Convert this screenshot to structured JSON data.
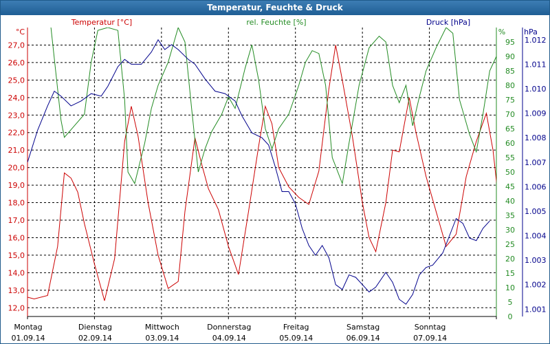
{
  "window": {
    "title": "Temperatur, Feuchte & Druck"
  },
  "chart_data": {
    "type": "line",
    "title": "Temperatur, Feuchte & Druck",
    "grid": true,
    "x_categories": [
      {
        "day": "Montag",
        "date": "01.09.14"
      },
      {
        "day": "Dienstag",
        "date": "02.09.14"
      },
      {
        "day": "Mittwoch",
        "date": "03.09.14"
      },
      {
        "day": "Donnerstag",
        "date": "04.09.14"
      },
      {
        "day": "Freitag",
        "date": "05.09.14"
      },
      {
        "day": "Samstag",
        "date": "06.09.14"
      },
      {
        "day": "Sonntag",
        "date": "07.09.14"
      }
    ],
    "axes": {
      "temperature": {
        "label": "Temperatur [°C]",
        "unit": "°C",
        "range": [
          11.5,
          28.0
        ],
        "ticks": [
          "12,0",
          "13,0",
          "14,0",
          "15,0",
          "16,0",
          "17,0",
          "18,0",
          "19,0",
          "20,0",
          "21,0",
          "22,0",
          "23,0",
          "24,0",
          "25,0",
          "26,0",
          "27,0"
        ],
        "color": "#cc0000"
      },
      "humidity": {
        "label": "rel. Feuchte [%]",
        "unit": "%",
        "range": [
          0,
          100
        ],
        "ticks": [
          "0",
          "5",
          "10",
          "15",
          "20",
          "25",
          "30",
          "35",
          "40",
          "45",
          "50",
          "55",
          "60",
          "65",
          "70",
          "75",
          "80",
          "85",
          "90",
          "95"
        ],
        "color": "#228b22"
      },
      "pressure": {
        "label": "Druck [hPa]",
        "unit": "hPa",
        "range": [
          1000.7,
          1012.5
        ],
        "ticks": [
          "1.001",
          "1.002",
          "1.003",
          "1.004",
          "1.005",
          "1.006",
          "1.007",
          "1.008",
          "1.009",
          "1.010",
          "1.011",
          "1.012"
        ],
        "color": "#00008b"
      }
    },
    "series": [
      {
        "name": "Temperatur [°C]",
        "axis": "temperature",
        "color": "#cc0000",
        "points": [
          [
            0,
            12.6
          ],
          [
            0.1,
            12.5
          ],
          [
            0.3,
            12.7
          ],
          [
            0.45,
            15.5
          ],
          [
            0.55,
            19.7
          ],
          [
            0.65,
            19.4
          ],
          [
            0.75,
            18.6
          ],
          [
            0.85,
            16.8
          ],
          [
            1.0,
            14.5
          ],
          [
            1.15,
            12.4
          ],
          [
            1.3,
            14.8
          ],
          [
            1.45,
            21.5
          ],
          [
            1.55,
            23.5
          ],
          [
            1.65,
            21.8
          ],
          [
            1.8,
            18.0
          ],
          [
            1.95,
            15.0
          ],
          [
            2.1,
            13.1
          ],
          [
            2.25,
            13.5
          ],
          [
            2.35,
            17.5
          ],
          [
            2.5,
            21.7
          ],
          [
            2.6,
            20.2
          ],
          [
            2.7,
            18.8
          ],
          [
            2.85,
            17.6
          ],
          [
            3.0,
            15.5
          ],
          [
            3.15,
            13.9
          ],
          [
            3.3,
            17.5
          ],
          [
            3.45,
            21.2
          ],
          [
            3.55,
            23.5
          ],
          [
            3.65,
            22.5
          ],
          [
            3.75,
            20.0
          ],
          [
            3.9,
            18.9
          ],
          [
            4.05,
            18.3
          ],
          [
            4.2,
            17.9
          ],
          [
            4.35,
            19.8
          ],
          [
            4.5,
            24.5
          ],
          [
            4.6,
            27.0
          ],
          [
            4.7,
            25.0
          ],
          [
            4.85,
            21.8
          ],
          [
            5.0,
            18.0
          ],
          [
            5.1,
            16.0
          ],
          [
            5.2,
            15.2
          ],
          [
            5.35,
            18.0
          ],
          [
            5.45,
            21.0
          ],
          [
            5.55,
            20.9
          ],
          [
            5.7,
            24.0
          ],
          [
            5.8,
            22.0
          ],
          [
            5.95,
            19.5
          ],
          [
            6.1,
            17.5
          ],
          [
            6.25,
            15.5
          ],
          [
            6.4,
            16.2
          ],
          [
            6.55,
            19.5
          ],
          [
            6.7,
            21.5
          ],
          [
            6.85,
            23.1
          ],
          [
            6.95,
            21.0
          ],
          [
            7.05,
            17.5
          ],
          [
            7.15,
            15.8
          ]
        ]
      },
      {
        "name": "rel. Feuchte [%]",
        "axis": "humidity",
        "color": "#228b22",
        "points": [
          [
            0.35,
            100
          ],
          [
            0.5,
            68
          ],
          [
            0.55,
            62
          ],
          [
            0.7,
            66
          ],
          [
            0.85,
            70
          ],
          [
            0.95,
            88
          ],
          [
            1.05,
            99
          ],
          [
            1.2,
            100
          ],
          [
            1.35,
            99
          ],
          [
            1.45,
            75
          ],
          [
            1.5,
            50
          ],
          [
            1.6,
            46
          ],
          [
            1.75,
            60
          ],
          [
            1.85,
            72
          ],
          [
            1.95,
            80
          ],
          [
            2.1,
            88
          ],
          [
            2.25,
            100
          ],
          [
            2.35,
            95
          ],
          [
            2.45,
            72
          ],
          [
            2.55,
            50
          ],
          [
            2.65,
            58
          ],
          [
            2.75,
            64
          ],
          [
            2.9,
            70
          ],
          [
            3.0,
            76
          ],
          [
            3.1,
            72
          ],
          [
            3.25,
            86
          ],
          [
            3.35,
            94
          ],
          [
            3.45,
            82
          ],
          [
            3.55,
            65
          ],
          [
            3.65,
            58
          ],
          [
            3.75,
            65
          ],
          [
            3.9,
            70
          ],
          [
            4.05,
            80
          ],
          [
            4.15,
            88
          ],
          [
            4.25,
            92
          ],
          [
            4.35,
            91
          ],
          [
            4.45,
            80
          ],
          [
            4.55,
            55
          ],
          [
            4.7,
            46
          ],
          [
            4.8,
            60
          ],
          [
            4.95,
            80
          ],
          [
            5.1,
            93
          ],
          [
            5.25,
            97
          ],
          [
            5.35,
            95
          ],
          [
            5.45,
            80
          ],
          [
            5.55,
            74
          ],
          [
            5.65,
            80
          ],
          [
            5.75,
            66
          ],
          [
            5.85,
            76
          ],
          [
            5.95,
            85
          ],
          [
            6.1,
            93
          ],
          [
            6.25,
            100
          ],
          [
            6.35,
            98
          ],
          [
            6.45,
            75
          ],
          [
            6.6,
            63
          ],
          [
            6.7,
            57
          ],
          [
            6.8,
            70
          ],
          [
            6.9,
            85
          ],
          [
            7.0,
            90
          ],
          [
            7.15,
            92
          ]
        ]
      },
      {
        "name": "Druck [hPa]",
        "axis": "pressure",
        "color": "#00008b",
        "points": [
          [
            0,
            1007.0
          ],
          [
            0.15,
            1008.3
          ],
          [
            0.3,
            1009.3
          ],
          [
            0.4,
            1009.9
          ],
          [
            0.5,
            1009.7
          ],
          [
            0.65,
            1009.3
          ],
          [
            0.8,
            1009.5
          ],
          [
            0.95,
            1009.8
          ],
          [
            1.1,
            1009.7
          ],
          [
            1.2,
            1010.1
          ],
          [
            1.35,
            1010.9
          ],
          [
            1.45,
            1011.2
          ],
          [
            1.55,
            1011.0
          ],
          [
            1.7,
            1011.0
          ],
          [
            1.85,
            1011.5
          ],
          [
            1.95,
            1012.0
          ],
          [
            2.05,
            1011.6
          ],
          [
            2.15,
            1011.8
          ],
          [
            2.25,
            1011.6
          ],
          [
            2.4,
            1011.2
          ],
          [
            2.5,
            1011.0
          ],
          [
            2.65,
            1010.4
          ],
          [
            2.8,
            1009.9
          ],
          [
            2.95,
            1009.8
          ],
          [
            3.1,
            1009.5
          ],
          [
            3.2,
            1008.9
          ],
          [
            3.35,
            1008.2
          ],
          [
            3.5,
            1008.0
          ],
          [
            3.6,
            1007.7
          ],
          [
            3.7,
            1006.8
          ],
          [
            3.8,
            1005.8
          ],
          [
            3.9,
            1005.8
          ],
          [
            4.0,
            1005.3
          ],
          [
            4.1,
            1004.3
          ],
          [
            4.2,
            1003.6
          ],
          [
            4.3,
            1003.2
          ],
          [
            4.4,
            1003.6
          ],
          [
            4.5,
            1003.1
          ],
          [
            4.6,
            1002.0
          ],
          [
            4.7,
            1001.8
          ],
          [
            4.8,
            1002.4
          ],
          [
            4.9,
            1002.3
          ],
          [
            5.0,
            1002.0
          ],
          [
            5.1,
            1001.7
          ],
          [
            5.2,
            1001.9
          ],
          [
            5.35,
            1002.5
          ],
          [
            5.45,
            1002.1
          ],
          [
            5.55,
            1001.4
          ],
          [
            5.65,
            1001.2
          ],
          [
            5.75,
            1001.6
          ],
          [
            5.85,
            1002.4
          ],
          [
            5.95,
            1002.7
          ],
          [
            6.05,
            1002.8
          ],
          [
            6.2,
            1003.3
          ],
          [
            6.3,
            1004.0
          ],
          [
            6.4,
            1004.7
          ],
          [
            6.5,
            1004.5
          ],
          [
            6.6,
            1003.9
          ],
          [
            6.7,
            1003.8
          ],
          [
            6.8,
            1004.3
          ],
          [
            6.9,
            1004.6
          ]
        ]
      }
    ]
  }
}
